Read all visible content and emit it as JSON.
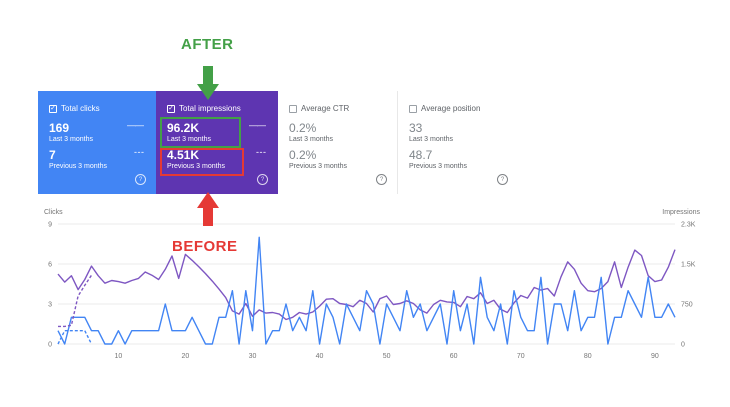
{
  "annotations": {
    "after_label": "AFTER",
    "before_label": "BEFORE",
    "after_color": "#43a047",
    "before_color": "#e53935"
  },
  "cards": {
    "clicks": {
      "title": "Total clicks",
      "value_current": "169",
      "label_current": "Last 3 months",
      "value_previous": "7",
      "label_previous": "Previous 3 months",
      "color": "#4285f4"
    },
    "impressions": {
      "title": "Total impressions",
      "value_current": "96.2K",
      "label_current": "Last 3 months",
      "value_previous": "4.51K",
      "label_previous": "Previous 3 months",
      "color": "#5e35b1"
    },
    "ctr": {
      "title": "Average CTR",
      "value_current": "0.2%",
      "label_current": "Last 3 months",
      "value_previous": "0.2%",
      "label_previous": "Previous 3 months"
    },
    "position": {
      "title": "Average position",
      "value_current": "33",
      "label_current": "Last 3 months",
      "value_previous": "48.7",
      "label_previous": "Previous 3 months"
    }
  },
  "chart_data": {
    "type": "line",
    "ylabel_left": "Clicks",
    "ylabel_right": "Impressions",
    "x_ticks": [
      "10",
      "20",
      "30",
      "40",
      "50",
      "60",
      "70",
      "80",
      "90"
    ],
    "y_left_ticks": [
      "0",
      "3",
      "6",
      "9"
    ],
    "y_right_ticks": [
      "0",
      "750",
      "1.5K",
      "2.3K"
    ],
    "xlim": [
      1,
      93
    ],
    "ylim_left": [
      0,
      9
    ],
    "ylim_right": [
      0,
      2250
    ],
    "grid": true,
    "series": [
      {
        "axis": "right",
        "color": "#7e57c2",
        "values": [
          1310,
          1160,
          1280,
          1020,
          1210,
          1460,
          1280,
          1140,
          1190,
          1170,
          1140,
          1190,
          1230,
          1350,
          1290,
          1210,
          1400,
          1650,
          1230,
          1680,
          1570,
          1450,
          1320,
          1180,
          1030,
          870,
          620,
          560,
          760,
          520,
          640,
          580,
          590,
          560,
          460,
          500,
          590,
          560,
          600,
          710,
          840,
          850,
          760,
          740,
          700,
          820,
          760,
          600,
          850,
          900,
          740,
          760,
          810,
          760,
          640,
          580,
          740,
          820,
          790,
          780,
          700,
          890,
          850,
          960,
          760,
          820,
          650,
          590,
          770,
          910,
          860,
          1060,
          1010,
          1040,
          900,
          1260,
          1540,
          1400,
          1140,
          1000,
          980,
          1040,
          1170,
          1540,
          1060,
          1440,
          1760,
          1660,
          1280,
          1170,
          1200,
          1440,
          1770
        ]
      },
      {
        "axis": "left",
        "color": "#4285f4",
        "values": [
          1,
          0,
          2,
          2,
          2,
          1,
          1,
          0,
          0,
          1,
          0,
          1,
          1,
          1,
          1,
          1,
          3,
          1,
          1,
          1,
          2,
          1,
          0,
          0,
          2,
          2,
          4,
          0,
          4,
          1,
          8,
          0,
          1,
          1,
          3,
          1,
          2,
          1,
          4,
          0,
          3,
          2,
          0,
          3,
          2,
          1,
          4,
          3,
          0,
          3,
          2,
          1,
          4,
          2,
          3,
          1,
          2,
          3,
          0,
          4,
          1,
          3,
          0,
          5,
          2,
          1,
          3,
          0,
          4,
          2,
          1,
          1,
          5,
          0,
          3,
          3,
          1,
          4,
          1,
          2,
          2,
          5,
          0,
          2,
          2,
          4,
          3,
          2,
          5,
          2,
          2,
          3,
          2
        ]
      },
      {
        "axis": "right",
        "color": "#7e57c2",
        "dashed": true,
        "values": [
          330,
          330,
          350,
          900,
          1100,
          1290
        ]
      },
      {
        "axis": "left",
        "color": "#4285f4",
        "dashed": true,
        "values": [
          0,
          1,
          1,
          1,
          1,
          0
        ]
      }
    ]
  }
}
